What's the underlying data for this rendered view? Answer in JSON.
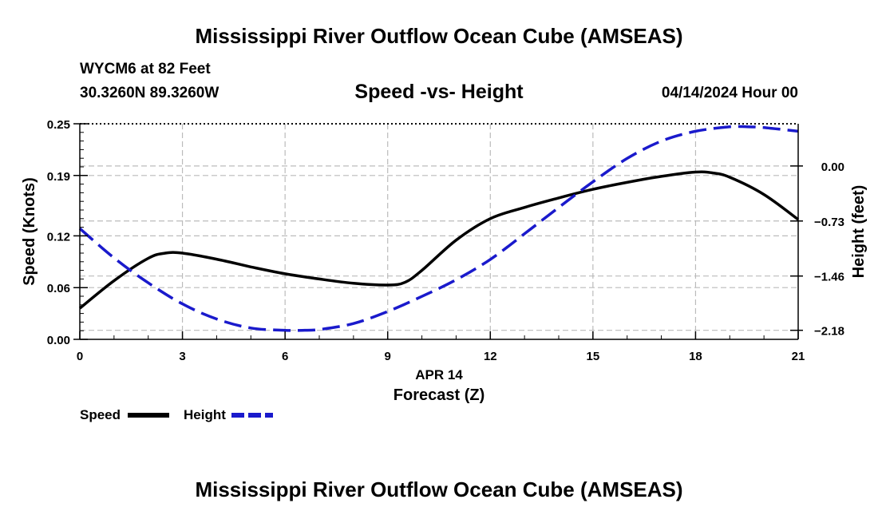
{
  "header": {
    "main_title": "Mississippi River Outflow Ocean Cube (AMSEAS)",
    "station": "WYCM6 at 82 Feet",
    "coords": "30.3260N  89.3260W",
    "date": "04/14/2024 Hour 00"
  },
  "footer": {
    "title": "Mississippi River Outflow Ocean Cube (AMSEAS)"
  },
  "legend": {
    "speed_label": "Speed",
    "height_label": "Height"
  },
  "colors": {
    "speed": "#000000",
    "height": "#1a1acc",
    "grid": "#bbbbbb"
  },
  "chart_data": {
    "type": "line",
    "title": "Speed -vs- Height",
    "xlabel": "Forecast (Z)",
    "xlabel_date": "APR 14",
    "ylabel": "Speed (Knots)",
    "y2label": "Height (feet)",
    "xlim": [
      0,
      21
    ],
    "ylim": [
      0,
      0.25
    ],
    "y2lim": [
      -2.3,
      0.56
    ],
    "x_ticks": [
      0,
      3,
      6,
      9,
      12,
      15,
      18,
      21
    ],
    "x_tick_labels": [
      "0",
      "3",
      "6",
      "9",
      "12",
      "15",
      "18",
      "21"
    ],
    "y_ticks": [
      0.0,
      0.06,
      0.12,
      0.19,
      0.25
    ],
    "y_tick_labels": [
      "0.00",
      "0.06",
      "0.12",
      "0.19",
      "0.25"
    ],
    "y2_ticks": [
      0.0,
      -0.73,
      -1.46,
      -2.18
    ],
    "y2_tick_labels": [
      "0.00",
      "−0.73",
      "−1.46",
      "−2.18"
    ],
    "grid": true,
    "series": [
      {
        "name": "Speed",
        "axis": "left",
        "style": "solid",
        "x": [
          0,
          1,
          2,
          2.5,
          3,
          4,
          5,
          6,
          7,
          8,
          9,
          9.5,
          10,
          11,
          12,
          13,
          14,
          15,
          16,
          17,
          18,
          18.5,
          19,
          20,
          21
        ],
        "values": [
          0.036,
          0.068,
          0.094,
          0.1,
          0.1,
          0.093,
          0.084,
          0.076,
          0.07,
          0.065,
          0.063,
          0.066,
          0.08,
          0.115,
          0.14,
          0.153,
          0.164,
          0.174,
          0.182,
          0.189,
          0.194,
          0.193,
          0.188,
          0.168,
          0.139
        ]
      },
      {
        "name": "Height",
        "axis": "right",
        "style": "dashed",
        "x": [
          0,
          1,
          2,
          3,
          4,
          5,
          6,
          6.5,
          7,
          8,
          9,
          10,
          11,
          12,
          13,
          14,
          15,
          16,
          17,
          18,
          19,
          19.5,
          20,
          21
        ],
        "values": [
          -0.83,
          -1.22,
          -1.55,
          -1.83,
          -2.03,
          -2.15,
          -2.18,
          -2.18,
          -2.17,
          -2.09,
          -1.93,
          -1.73,
          -1.51,
          -1.24,
          -0.9,
          -0.55,
          -0.21,
          0.1,
          0.33,
          0.46,
          0.52,
          0.52,
          0.51,
          0.46
        ]
      }
    ]
  }
}
